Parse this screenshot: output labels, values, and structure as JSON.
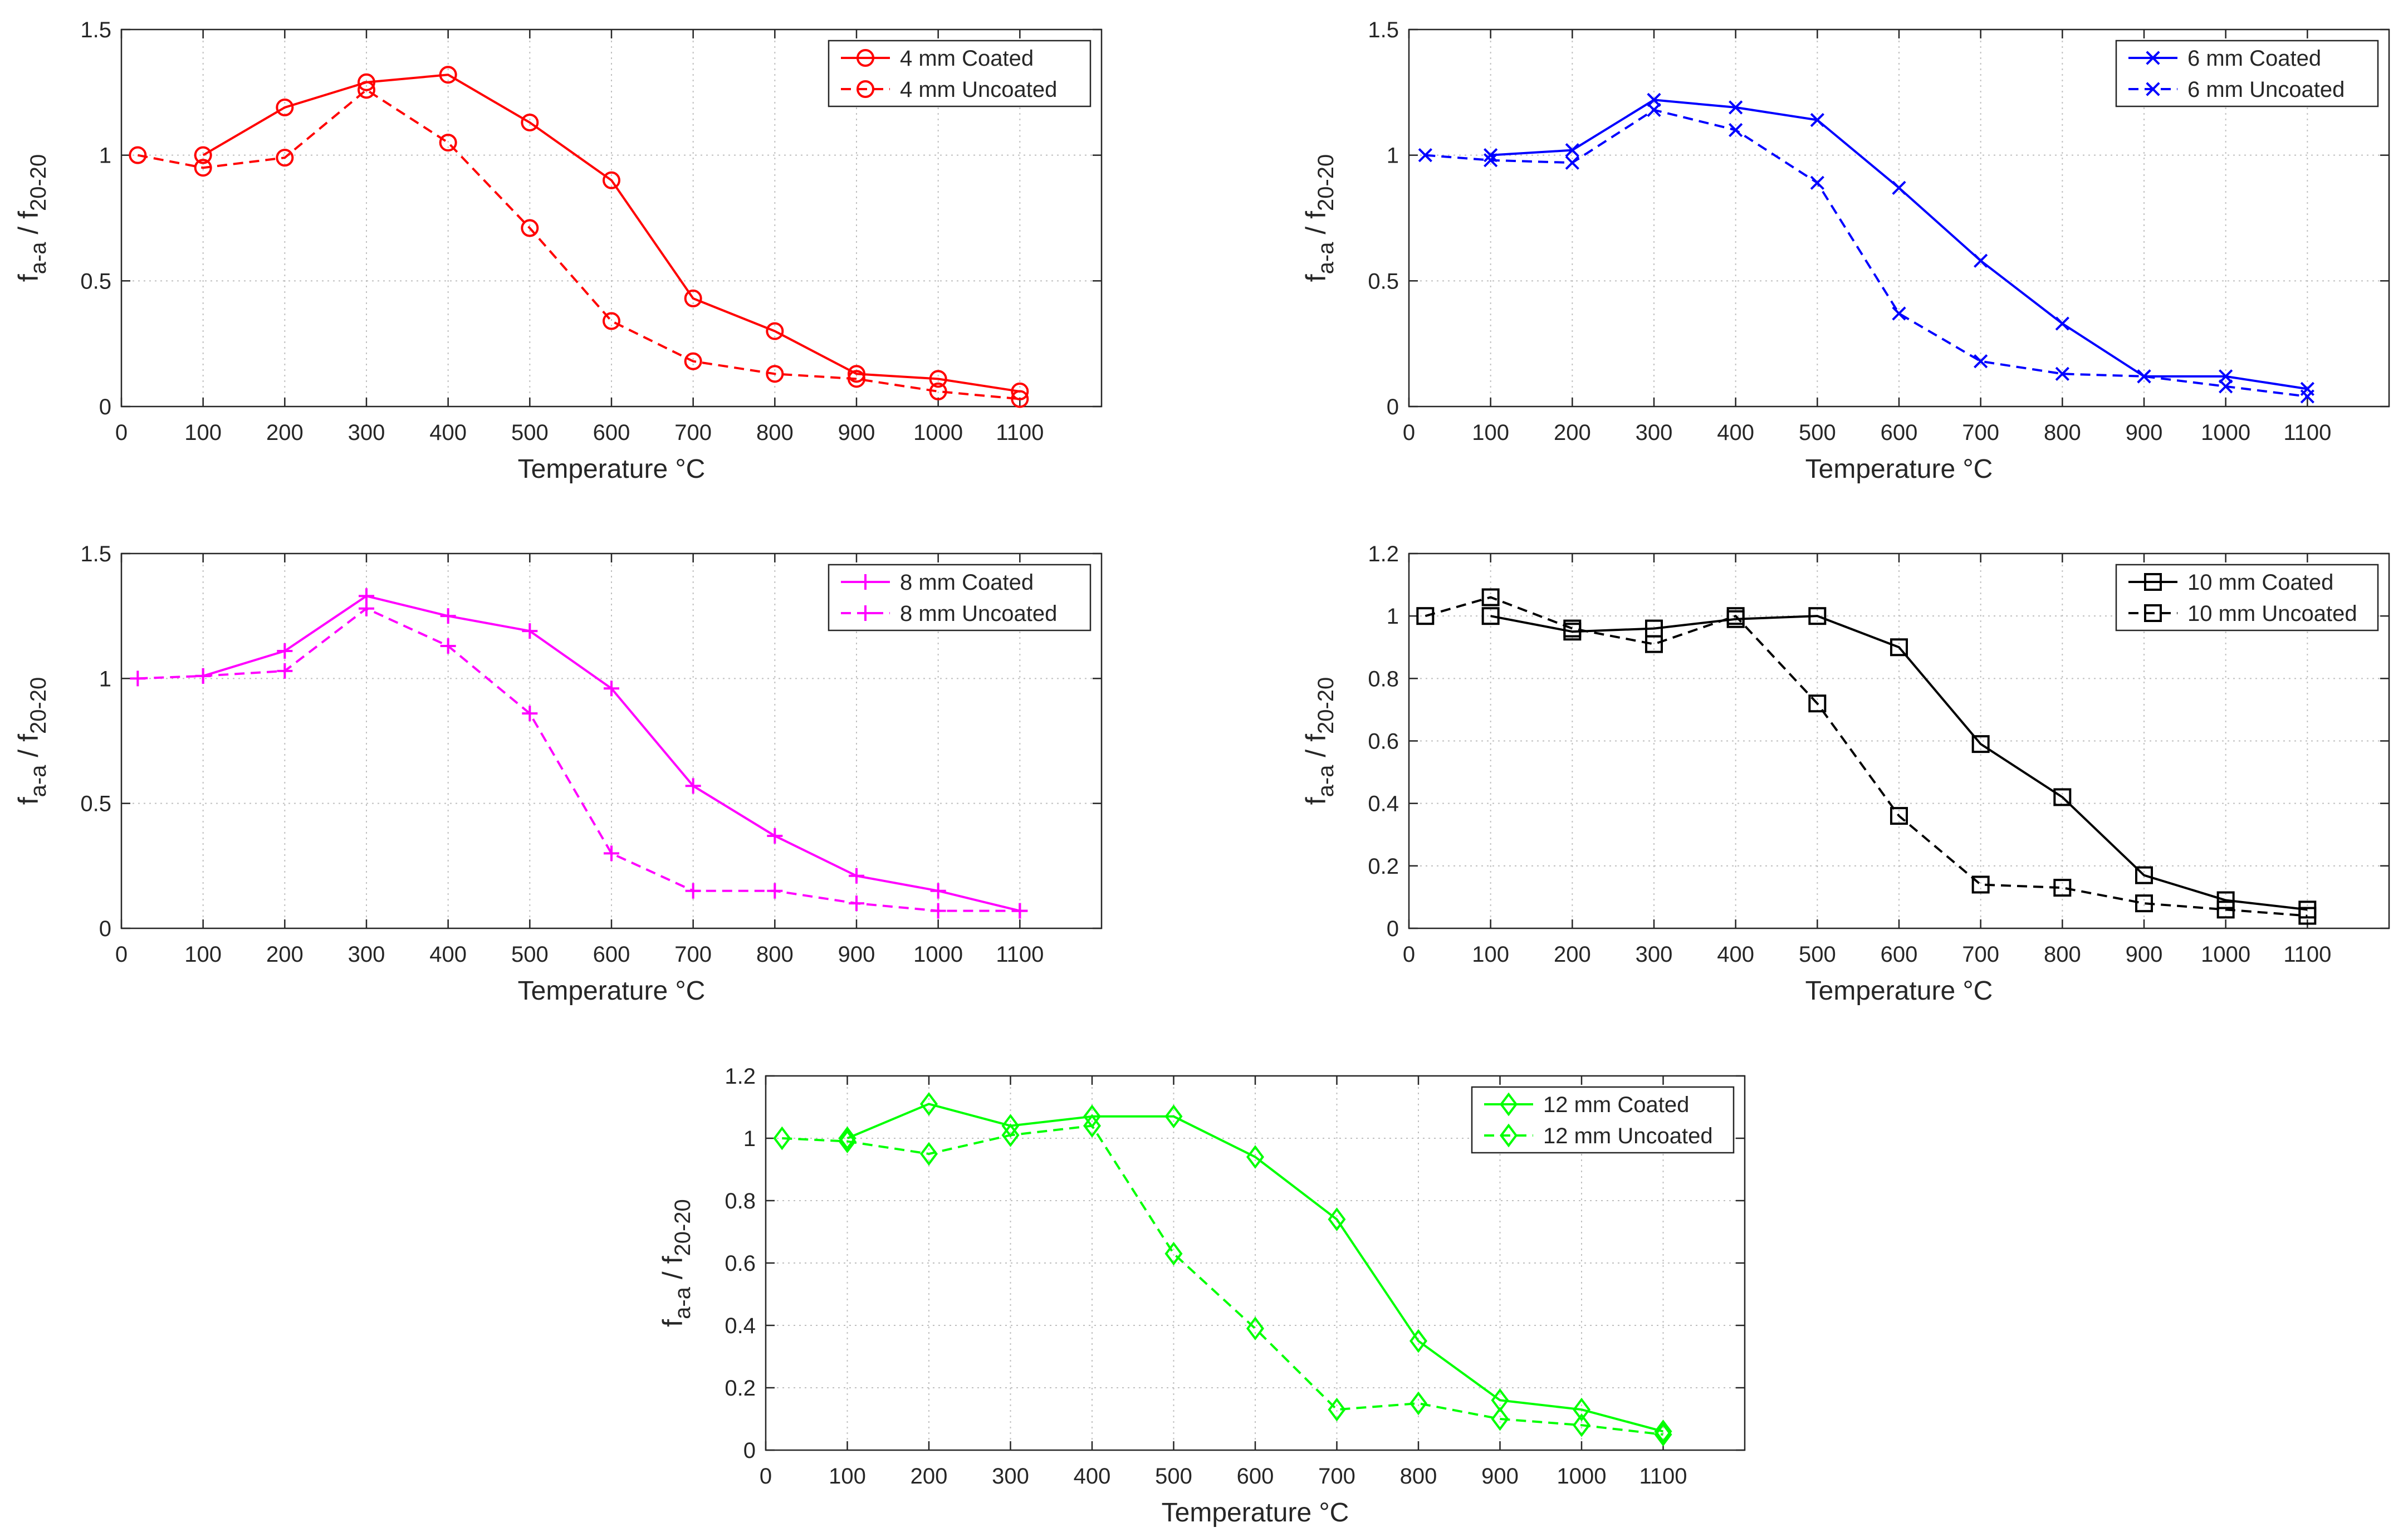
{
  "chart_data": [
    {
      "type": "line",
      "xlabel": "Temperature °C",
      "ylabel": "f_a-a / f_20-20",
      "xlim": [
        0,
        1200
      ],
      "ylim": [
        0,
        1.5
      ],
      "xticks": [
        0,
        100,
        200,
        300,
        400,
        500,
        600,
        700,
        800,
        900,
        1000,
        1100
      ],
      "yticks": [
        0,
        0.5,
        1,
        1.5
      ],
      "grid": true,
      "legend": "top-right",
      "series": [
        {
          "name": "4 mm Coated",
          "color": "#ff0000",
          "dashed": false,
          "marker": "circle",
          "x": [
            100,
            200,
            300,
            400,
            500,
            600,
            700,
            800,
            900,
            1000,
            1100
          ],
          "values": [
            1.0,
            1.19,
            1.29,
            1.32,
            1.13,
            0.9,
            0.43,
            0.3,
            0.13,
            0.11,
            0.06
          ]
        },
        {
          "name": "4 mm Uncoated",
          "color": "#ff0000",
          "dashed": true,
          "marker": "circle",
          "x": [
            20,
            100,
            200,
            300,
            400,
            500,
            600,
            700,
            800,
            900,
            1000,
            1100
          ],
          "values": [
            1.0,
            0.95,
            0.99,
            1.26,
            1.05,
            0.71,
            0.34,
            0.18,
            0.13,
            0.11,
            0.06,
            0.03
          ]
        }
      ]
    },
    {
      "type": "line",
      "xlabel": "Temperature °C",
      "ylabel": "f_a-a / f_20-20",
      "xlim": [
        0,
        1200
      ],
      "ylim": [
        0,
        1.5
      ],
      "xticks": [
        0,
        100,
        200,
        300,
        400,
        500,
        600,
        700,
        800,
        900,
        1000,
        1100
      ],
      "yticks": [
        0,
        0.5,
        1,
        1.5
      ],
      "grid": true,
      "legend": "top-right",
      "series": [
        {
          "name": "6 mm Coated",
          "color": "#0000ff",
          "dashed": false,
          "marker": "x",
          "x": [
            100,
            200,
            300,
            400,
            500,
            600,
            700,
            800,
            900,
            1000,
            1100
          ],
          "values": [
            1.0,
            1.02,
            1.22,
            1.19,
            1.14,
            0.87,
            0.58,
            0.33,
            0.12,
            0.12,
            0.07
          ]
        },
        {
          "name": "6 mm Uncoated",
          "color": "#0000ff",
          "dashed": true,
          "marker": "x",
          "x": [
            20,
            100,
            200,
            300,
            400,
            500,
            600,
            700,
            800,
            900,
            1000,
            1100
          ],
          "values": [
            1.0,
            0.98,
            0.97,
            1.18,
            1.1,
            0.89,
            0.37,
            0.18,
            0.13,
            0.12,
            0.08,
            0.04
          ]
        }
      ]
    },
    {
      "type": "line",
      "xlabel": "Temperature °C",
      "ylabel": "f_a-a / f_20-20",
      "xlim": [
        0,
        1200
      ],
      "ylim": [
        0,
        1.5
      ],
      "xticks": [
        0,
        100,
        200,
        300,
        400,
        500,
        600,
        700,
        800,
        900,
        1000,
        1100
      ],
      "yticks": [
        0,
        0.5,
        1,
        1.5
      ],
      "grid": true,
      "legend": "top-right",
      "series": [
        {
          "name": "8 mm Coated",
          "color": "#ff00ff",
          "dashed": false,
          "marker": "plus",
          "x": [
            100,
            200,
            300,
            400,
            500,
            600,
            700,
            800,
            900,
            1000,
            1100
          ],
          "values": [
            1.01,
            1.11,
            1.33,
            1.25,
            1.19,
            0.96,
            0.57,
            0.37,
            0.21,
            0.15,
            0.07
          ]
        },
        {
          "name": "8 mm Uncoated",
          "color": "#ff00ff",
          "dashed": true,
          "marker": "plus",
          "x": [
            20,
            100,
            200,
            300,
            400,
            500,
            600,
            700,
            800,
            900,
            1000,
            1100
          ],
          "values": [
            1.0,
            1.01,
            1.03,
            1.28,
            1.13,
            0.86,
            0.3,
            0.15,
            0.15,
            0.1,
            0.07,
            0.07
          ]
        }
      ]
    },
    {
      "type": "line",
      "xlabel": "Temperature °C",
      "ylabel": "f_a-a / f_20-20",
      "xlim": [
        0,
        1200
      ],
      "ylim": [
        0,
        1.2
      ],
      "xticks": [
        0,
        100,
        200,
        300,
        400,
        500,
        600,
        700,
        800,
        900,
        1000,
        1100
      ],
      "yticks": [
        0,
        0.2,
        0.4,
        0.6,
        0.8,
        1,
        1.2
      ],
      "grid": true,
      "legend": "top-right",
      "series": [
        {
          "name": "10 mm Coated",
          "color": "#000000",
          "dashed": false,
          "marker": "square",
          "x": [
            100,
            200,
            300,
            400,
            500,
            600,
            700,
            800,
            900,
            1000,
            1100
          ],
          "values": [
            1.0,
            0.95,
            0.96,
            0.99,
            1.0,
            0.9,
            0.59,
            0.42,
            0.17,
            0.09,
            0.06
          ]
        },
        {
          "name": "10 mm Uncoated",
          "color": "#000000",
          "dashed": true,
          "marker": "square",
          "x": [
            20,
            100,
            200,
            300,
            400,
            500,
            600,
            700,
            800,
            900,
            1000,
            1100
          ],
          "values": [
            1.0,
            1.06,
            0.96,
            0.91,
            1.0,
            0.72,
            0.36,
            0.14,
            0.13,
            0.08,
            0.06,
            0.04
          ]
        }
      ]
    },
    {
      "type": "line",
      "xlabel": "Temperature °C",
      "ylabel": "f_a-a / f_20-20",
      "xlim": [
        0,
        1200
      ],
      "ylim": [
        0,
        1.2
      ],
      "xticks": [
        0,
        100,
        200,
        300,
        400,
        500,
        600,
        700,
        800,
        900,
        1000,
        1100
      ],
      "yticks": [
        0,
        0.2,
        0.4,
        0.6,
        0.8,
        1,
        1.2
      ],
      "grid": true,
      "legend": "top-right",
      "series": [
        {
          "name": "12 mm Coated",
          "color": "#00ff00",
          "dashed": false,
          "marker": "diamond",
          "x": [
            100,
            200,
            300,
            400,
            500,
            600,
            700,
            800,
            900,
            1000,
            1100
          ],
          "values": [
            1.0,
            1.11,
            1.04,
            1.07,
            1.07,
            0.94,
            0.74,
            0.35,
            0.16,
            0.13,
            0.06
          ]
        },
        {
          "name": "12 mm Uncoated",
          "color": "#00ff00",
          "dashed": true,
          "marker": "diamond",
          "x": [
            20,
            100,
            200,
            300,
            400,
            500,
            600,
            700,
            800,
            900,
            1000,
            1100
          ],
          "values": [
            1.0,
            0.99,
            0.95,
            1.01,
            1.04,
            0.63,
            0.39,
            0.13,
            0.15,
            0.1,
            0.08,
            0.05
          ]
        }
      ]
    }
  ]
}
